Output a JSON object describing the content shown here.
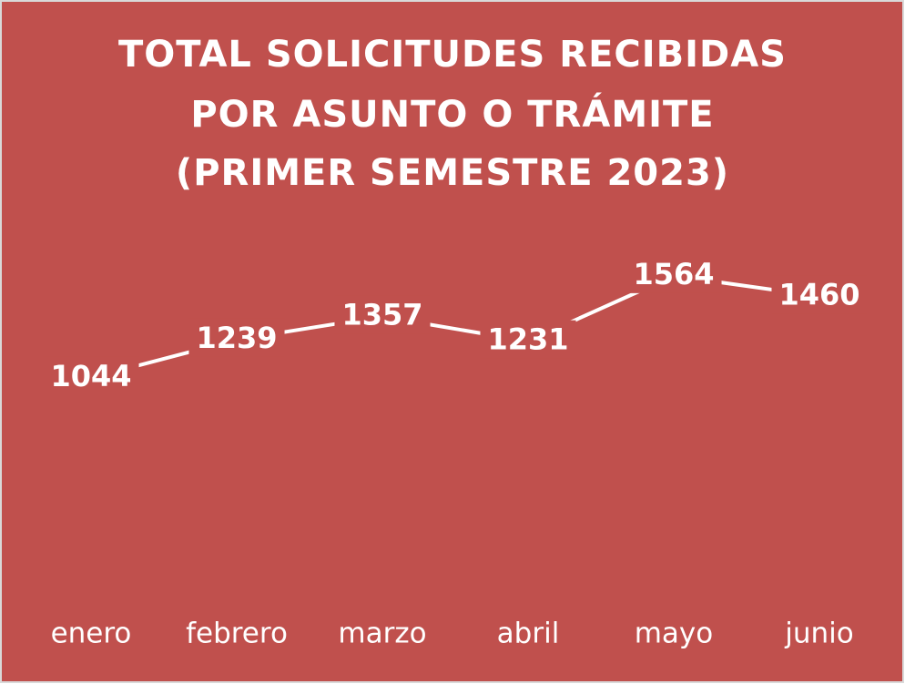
{
  "chart_data": {
    "type": "line",
    "title": [
      "TOTAL SOLICITUDES RECIBIDAS",
      "POR ASUNTO O TRÁMITE",
      "(PRIMER SEMESTRE 2023)"
    ],
    "categories": [
      "enero",
      "febrero",
      "marzo",
      "abril",
      "mayo",
      "junio"
    ],
    "values": [
      1044,
      1239,
      1357,
      1231,
      1564,
      1460
    ],
    "color": "#ffffff",
    "background": "#c0504d",
    "ylim": [
      0,
      1800
    ]
  }
}
